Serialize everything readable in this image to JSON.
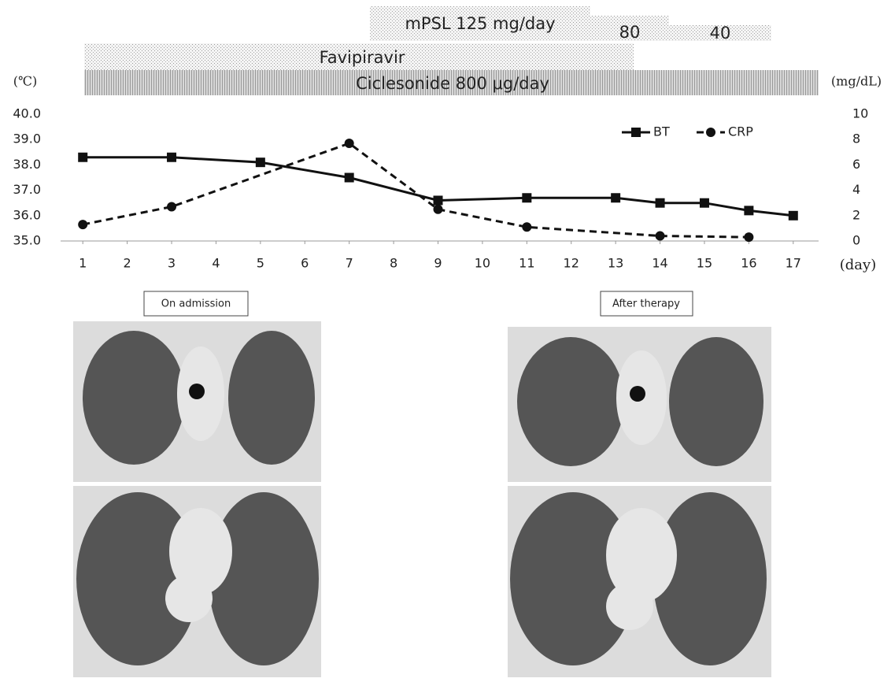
{
  "chart_data": {
    "type": "line",
    "treatments": {
      "mpsl": "mPSL 125 mg/day",
      "mpsl_2": "80",
      "mpsl_3": "40",
      "favipiravir": "Favipiravir",
      "ciclesonide": "Ciclesonide 800 μg/day"
    },
    "y_label": "(℃)",
    "y2_label": "(mg/dL)",
    "x_label": "(day)",
    "xlim": [
      0.5,
      17.5
    ],
    "xticks": [
      1,
      2,
      3,
      4,
      5,
      6,
      7,
      8,
      9,
      10,
      11,
      12,
      13,
      14,
      15,
      16,
      17
    ],
    "ylim": [
      35,
      40
    ],
    "yticks": [
      {
        "value": 35,
        "label": "35.0"
      },
      {
        "value": 36,
        "label": "36.0"
      },
      {
        "value": 37,
        "label": "37.0"
      },
      {
        "value": 38,
        "label": "38.0"
      },
      {
        "value": 39,
        "label": "39.0"
      },
      {
        "value": 40,
        "label": "40.0"
      }
    ],
    "y2lim": [
      0,
      10
    ],
    "y2ticks": [
      0,
      2,
      4,
      6,
      8,
      10
    ],
    "legend": "upper right",
    "series": [
      {
        "name": "BT",
        "color": "#111111",
        "marker": "square",
        "dash": false,
        "x": [
          1,
          3,
          5,
          7,
          9,
          11,
          13,
          14,
          15,
          16,
          17
        ],
        "values": [
          38.3,
          38.3,
          38.1,
          37.5,
          36.6,
          36.7,
          36.7,
          36.5,
          36.5,
          36.2,
          36.0
        ]
      },
      {
        "name": "CRP",
        "color": "#111111",
        "marker": "circle",
        "dash": true,
        "axis": "y2",
        "x": [
          1,
          3,
          7,
          9,
          11,
          14,
          16
        ],
        "values": [
          1.3,
          2.7,
          7.7,
          2.5,
          1.1,
          0.4,
          0.3
        ]
      }
    ],
    "image_labels": [
      "On admission",
      "After therapy"
    ]
  }
}
